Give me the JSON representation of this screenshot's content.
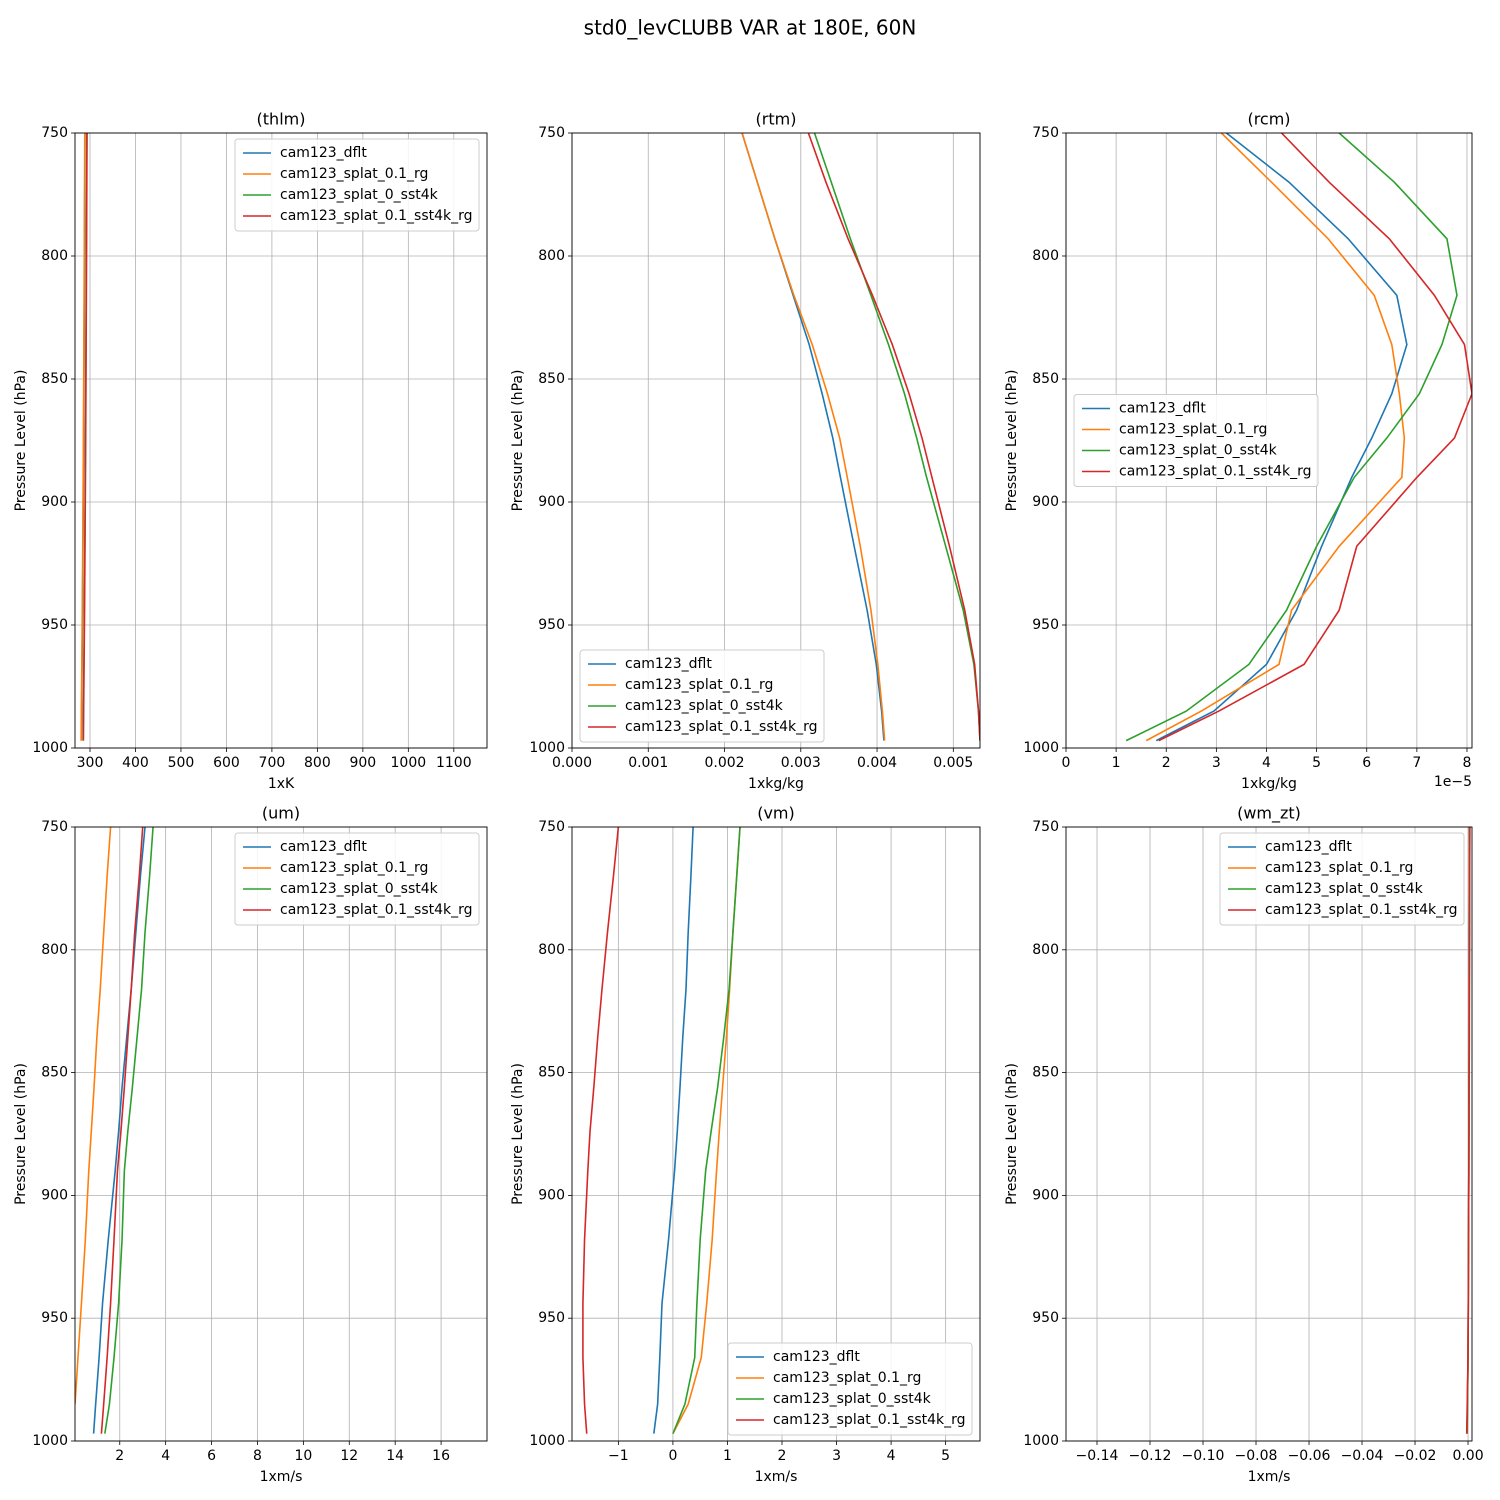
{
  "title": "std0_levCLUBB VAR at 180E, 60N",
  "chart_data": [
    {
      "type": "line",
      "title": "(thlm)",
      "xlabel": "1xK",
      "ylabel": "Pressure Level (hPa)",
      "legend_loc": "upper right",
      "grid": true,
      "xlim": [
        267,
        1173
      ],
      "xticks": [
        300,
        400,
        500,
        600,
        700,
        800,
        900,
        1000,
        1100
      ],
      "ylim": [
        1000,
        750
      ],
      "yticks": [
        750,
        800,
        850,
        900,
        950,
        1000
      ],
      "y": [
        750,
        770,
        793,
        816,
        836,
        856,
        874,
        890,
        918,
        944,
        966,
        985,
        997
      ],
      "series": [
        {
          "name": "cam123_dflt",
          "color": "#1f77b4",
          "values": [
            289,
            288.5,
            288,
            287.5,
            287,
            286.5,
            286,
            285.5,
            284.5,
            283.5,
            282.5,
            281.5,
            281
          ]
        },
        {
          "name": "cam123_splat_0.1_rg",
          "color": "#ff7f0e",
          "values": [
            288.5,
            288,
            287.5,
            287,
            286.5,
            286,
            285.5,
            285,
            284,
            283,
            282,
            281,
            280.5
          ]
        },
        {
          "name": "cam123_splat_0_sst4k",
          "color": "#2ca02c",
          "values": [
            293,
            292.5,
            292,
            291.5,
            291,
            290.5,
            290,
            289.5,
            288.5,
            287.5,
            286.5,
            285.5,
            285
          ]
        },
        {
          "name": "cam123_splat_0.1_sst4k_rg",
          "color": "#d62728",
          "values": [
            293.5,
            293,
            292.5,
            292,
            291.5,
            291,
            290.5,
            290,
            289,
            288,
            287,
            286,
            285.5
          ]
        }
      ]
    },
    {
      "type": "line",
      "title": "(rtm)",
      "xlabel": "1xkg/kg",
      "ylabel": "Pressure Level (hPa)",
      "legend_loc": "lower left",
      "grid": true,
      "xlim": [
        0,
        0.00535
      ],
      "xticks": [
        {
          "value": 0,
          "label": "0.000"
        },
        0.001,
        0.002,
        0.003,
        0.004,
        0.005
      ],
      "ylim": [
        1000,
        750
      ],
      "yticks": [
        750,
        800,
        850,
        900,
        950,
        1000
      ],
      "y": [
        750,
        770,
        793,
        816,
        836,
        856,
        874,
        890,
        918,
        944,
        966,
        985,
        997
      ],
      "series": [
        {
          "name": "cam123_dflt",
          "color": "#1f77b4",
          "values": [
            0.00223,
            0.00243,
            0.00266,
            0.0029,
            0.00311,
            0.00328,
            0.00342,
            0.00352,
            0.0037,
            0.00387,
            0.00399,
            0.00406,
            0.00409
          ]
        },
        {
          "name": "cam123_splat_0.1_rg",
          "color": "#ff7f0e",
          "values": [
            0.00223,
            0.00243,
            0.00266,
            0.00291,
            0.00315,
            0.00335,
            0.00351,
            0.00361,
            0.00378,
            0.00392,
            0.00401,
            0.00407,
            0.0041
          ]
        },
        {
          "name": "cam123_splat_0_sst4k",
          "color": "#2ca02c",
          "values": [
            0.00318,
            0.0034,
            0.00365,
            0.00392,
            0.00415,
            0.00436,
            0.00452,
            0.00465,
            0.0049,
            0.00513,
            0.00527,
            0.00533,
            0.00535
          ]
        },
        {
          "name": "cam123_splat_0.1_sst4k_rg",
          "color": "#d62728",
          "values": [
            0.0031,
            0.00333,
            0.00362,
            0.00394,
            0.0042,
            0.00442,
            0.00459,
            0.00472,
            0.00495,
            0.00515,
            0.00528,
            0.00533,
            0.00535
          ]
        }
      ]
    },
    {
      "type": "line",
      "title": "(rcm)",
      "xlabel": "1xkg/kg",
      "x_offset_label": "1e−5",
      "ylabel": "Pressure Level (hPa)",
      "legend_loc": "center left",
      "grid": true,
      "xlim": [
        0,
        8.1e-05
      ],
      "xticks": [
        0,
        {
          "value": 1e-05,
          "label": "1"
        },
        {
          "value": 2e-05,
          "label": "2"
        },
        {
          "value": 3e-05,
          "label": "3"
        },
        {
          "value": 4e-05,
          "label": "4"
        },
        {
          "value": 5e-05,
          "label": "5"
        },
        {
          "value": 6e-05,
          "label": "6"
        },
        {
          "value": 7e-05,
          "label": "7"
        },
        {
          "value": 8e-05,
          "label": "8"
        }
      ],
      "ylim": [
        1000,
        750
      ],
      "yticks": [
        750,
        800,
        850,
        900,
        950,
        1000
      ],
      "y": [
        750,
        770,
        793,
        816,
        836,
        856,
        874,
        890,
        918,
        944,
        966,
        985,
        997
      ],
      "series": [
        {
          "name": "cam123_dflt",
          "color": "#1f77b4",
          "values": [
            3.2e-05,
            4.45e-05,
            5.63e-05,
            6.6e-05,
            6.8e-05,
            6.5e-05,
            6.1e-05,
            5.7e-05,
            5.1e-05,
            4.6e-05,
            4e-05,
            2.95e-05,
            1.8e-05
          ]
        },
        {
          "name": "cam123_splat_0.1_rg",
          "color": "#ff7f0e",
          "values": [
            3.1e-05,
            4.1e-05,
            5.23e-05,
            6.15e-05,
            6.5e-05,
            6.65e-05,
            6.75e-05,
            6.7e-05,
            5.45e-05,
            4.5e-05,
            4.25e-05,
            2.7e-05,
            1.6e-05
          ]
        },
        {
          "name": "cam123_splat_0_sst4k",
          "color": "#2ca02c",
          "values": [
            5.45e-05,
            6.55e-05,
            7.6e-05,
            7.8e-05,
            7.5e-05,
            7.05e-05,
            6.4e-05,
            5.75e-05,
            5e-05,
            4.4e-05,
            3.65e-05,
            2.4e-05,
            1.2e-05
          ]
        },
        {
          "name": "cam123_splat_0.1_sst4k_rg",
          "color": "#d62728",
          "values": [
            4.3e-05,
            5.25e-05,
            6.45e-05,
            7.35e-05,
            7.95e-05,
            8.1e-05,
            7.75e-05,
            7e-05,
            5.8e-05,
            5.45e-05,
            4.75e-05,
            3.05e-05,
            1.85e-05
          ]
        }
      ]
    },
    {
      "type": "line",
      "title": "(um)",
      "xlabel": "1xm/s",
      "ylabel": "Pressure Level (hPa)",
      "legend_loc": "upper right",
      "grid": true,
      "xlim": [
        0.05,
        18
      ],
      "xticks": [
        2,
        4,
        6,
        8,
        10,
        12,
        14,
        16
      ],
      "ylim": [
        1000,
        750
      ],
      "yticks": [
        750,
        800,
        850,
        900,
        950,
        1000
      ],
      "y": [
        750,
        770,
        793,
        816,
        836,
        856,
        874,
        890,
        918,
        944,
        966,
        985,
        997
      ],
      "series": [
        {
          "name": "cam123_dflt",
          "color": "#1f77b4",
          "values": [
            3.1,
            2.9,
            2.7,
            2.5,
            2.3,
            2.1,
            1.95,
            1.8,
            1.5,
            1.25,
            1.1,
            0.95,
            0.86
          ]
        },
        {
          "name": "cam123_splat_0.1_rg",
          "color": "#ff7f0e",
          "values": [
            1.6,
            1.45,
            1.3,
            1.15,
            1.0,
            0.88,
            0.76,
            0.65,
            0.5,
            0.33,
            0.18,
            0.05,
            null
          ]
        },
        {
          "name": "cam123_splat_0_sst4k",
          "color": "#2ca02c",
          "values": [
            3.45,
            3.3,
            3.1,
            2.95,
            2.75,
            2.55,
            2.35,
            2.2,
            2.1,
            1.95,
            1.75,
            1.55,
            1.35
          ]
        },
        {
          "name": "cam123_splat_0.1_sst4k_rg",
          "color": "#d62728",
          "values": [
            3.0,
            2.85,
            2.65,
            2.5,
            2.35,
            2.2,
            2.05,
            1.9,
            1.75,
            1.6,
            1.45,
            1.3,
            1.2
          ]
        }
      ]
    },
    {
      "type": "line",
      "title": "(vm)",
      "xlabel": "1xm/s",
      "ylabel": "Pressure Level (hPa)",
      "legend_loc": "lower right",
      "grid": true,
      "xlim": [
        -1.85,
        5.63
      ],
      "xticks": [
        {
          "value": -1,
          "label": "−1"
        },
        0,
        1,
        2,
        3,
        4,
        5
      ],
      "ylim": [
        1000,
        750
      ],
      "yticks": [
        750,
        800,
        850,
        900,
        950,
        1000
      ],
      "y": [
        750,
        770,
        793,
        816,
        836,
        856,
        874,
        890,
        918,
        944,
        966,
        985,
        997
      ],
      "series": [
        {
          "name": "cam123_dflt",
          "color": "#1f77b4",
          "values": [
            0.37,
            0.33,
            0.28,
            0.24,
            0.18,
            0.13,
            0.08,
            0.03,
            -0.08,
            -0.2,
            -0.24,
            -0.28,
            -0.35
          ]
        },
        {
          "name": "cam123_splat_0.1_rg",
          "color": "#ff7f0e",
          "values": [
            1.23,
            1.17,
            1.1,
            1.04,
            0.98,
            0.91,
            0.85,
            0.8,
            0.72,
            0.62,
            0.52,
            0.28,
            0.0
          ]
        },
        {
          "name": "cam123_splat_0_sst4k",
          "color": "#2ca02c",
          "values": [
            1.23,
            1.17,
            1.1,
            1.03,
            0.93,
            0.82,
            0.7,
            0.6,
            0.5,
            0.44,
            0.4,
            0.22,
            0.0
          ]
        },
        {
          "name": "cam123_splat_0.1_sst4k_rg",
          "color": "#d62728",
          "values": [
            -1.0,
            -1.09,
            -1.2,
            -1.3,
            -1.38,
            -1.45,
            -1.52,
            -1.56,
            -1.62,
            -1.65,
            -1.65,
            -1.62,
            -1.58
          ]
        }
      ]
    },
    {
      "type": "line",
      "title": "(wm_zt)",
      "xlabel": "1xm/s",
      "ylabel": "Pressure Level (hPa)",
      "legend_loc": "upper right",
      "grid": true,
      "xlim": [
        -0.1517,
        0.0015
      ],
      "xticks": [
        {
          "value": -0.14,
          "label": "−0.14"
        },
        {
          "value": -0.12,
          "label": "−0.12"
        },
        {
          "value": -0.1,
          "label": "−0.10"
        },
        {
          "value": -0.08,
          "label": "−0.08"
        },
        {
          "value": -0.06,
          "label": "−0.06"
        },
        {
          "value": -0.04,
          "label": "−0.04"
        },
        {
          "value": -0.02,
          "label": "−0.02"
        },
        {
          "value": 0,
          "label": "0.00"
        }
      ],
      "ylim": [
        1000,
        750
      ],
      "yticks": [
        750,
        800,
        850,
        900,
        950,
        1000
      ],
      "y": [
        750,
        770,
        793,
        816,
        836,
        856,
        874,
        890,
        918,
        944,
        966,
        985,
        997
      ],
      "series": [
        {
          "name": "cam123_dflt",
          "color": "#1f77b4",
          "values": [
            0.0005,
            0.0005,
            0.0004,
            0.0004,
            0.0004,
            0.0003,
            0.0003,
            0.0003,
            0.0002,
            0.0001,
            0,
            -0.0002,
            -0.0003
          ]
        },
        {
          "name": "cam123_splat_0.1_rg",
          "color": "#ff7f0e",
          "values": [
            0.0006,
            0.0005,
            0.0005,
            0.0004,
            0.0004,
            0.0004,
            0.0003,
            0.0003,
            0.0002,
            0.0001,
            0,
            -0.0002,
            -0.0004
          ]
        },
        {
          "name": "cam123_splat_0_sst4k",
          "color": "#2ca02c",
          "values": [
            0.0006,
            0.0006,
            0.0005,
            0.0005,
            0.0004,
            0.0004,
            0.0003,
            0.0003,
            0.0002,
            0.0001,
            0,
            -0.0002,
            -0.0004
          ]
        },
        {
          "name": "cam123_splat_0.1_sst4k_rg",
          "color": "#d62728",
          "values": [
            0.0007,
            0.0006,
            0.0006,
            0.0005,
            0.0005,
            0.0004,
            0.0004,
            0.0003,
            0.0002,
            0.0001,
            0,
            -0.0003,
            -0.0005
          ]
        }
      ]
    }
  ]
}
